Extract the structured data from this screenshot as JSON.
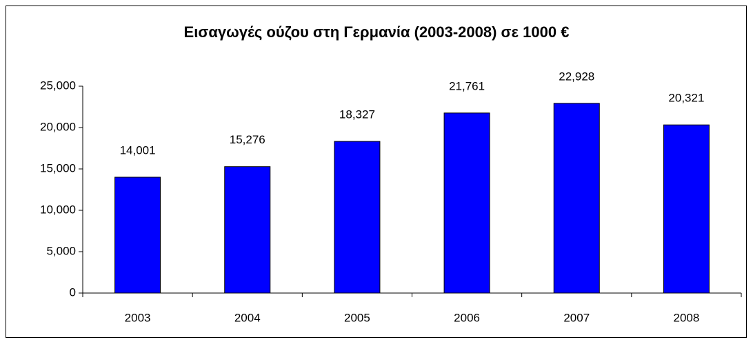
{
  "chart_data": {
    "type": "bar",
    "title": "Εισαγωγές ούζου στη Γερμανία (2003-2008) σε 1000 €",
    "categories": [
      "2003",
      "2004",
      "2005",
      "2006",
      "2007",
      "2008"
    ],
    "values": [
      14001,
      15276,
      18327,
      21761,
      22928,
      20321
    ],
    "value_labels": [
      "14,001",
      "15,276",
      "18,327",
      "21,761",
      "22,928",
      "20,321"
    ],
    "color": "#0000ff",
    "ylim": [
      0,
      25000
    ],
    "yticks": [
      0,
      {
        "value": 5000,
        "label": "5,000"
      },
      {
        "value": 10000,
        "label": "10,000"
      },
      {
        "value": 15000,
        "label": "15,000"
      },
      {
        "value": 20000,
        "label": "20,000"
      },
      {
        "value": 25000,
        "label": "25,000"
      }
    ],
    "grid": false
  }
}
